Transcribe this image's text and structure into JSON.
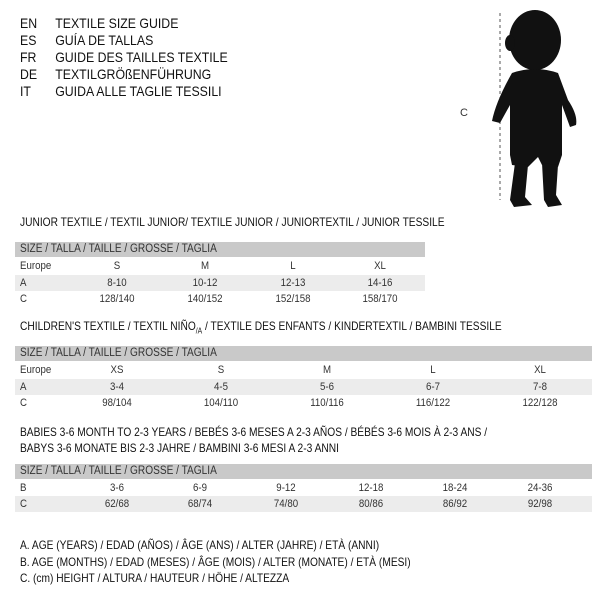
{
  "languages": [
    {
      "code": "EN",
      "text": "TEXTILE SIZE GUIDE"
    },
    {
      "code": "ES",
      "text": "GUÍA DE TALLAS"
    },
    {
      "code": "FR",
      "text": "GUIDE DES TAILLES TEXTILE"
    },
    {
      "code": "DE",
      "text": "TEXTILGRÖßENFÜHRUNG"
    },
    {
      "code": "IT",
      "text": "GUIDA ALLE TAGLIE TESSILI"
    }
  ],
  "figure": {
    "measure_label": "C"
  },
  "size_header": "SIZE / TALLA / TAILLE / GRÖSSE / TAGLIA",
  "junior": {
    "title": "JUNIOR TEXTILE / TEXTIL JUNIOR/ TEXTILE JUNIOR / JUNIORTEXTIL / JUNIOR TESSILE",
    "rows": [
      {
        "label": "Europe",
        "cells": [
          "S",
          "M",
          "L",
          "XL"
        ]
      },
      {
        "label": "A",
        "cells": [
          "8-10",
          "10-12",
          "12-13",
          "14-16"
        ]
      },
      {
        "label": "C",
        "cells": [
          "128/140",
          "140/152",
          "152/158",
          "158/170"
        ]
      }
    ]
  },
  "children": {
    "title_a": "CHILDREN'S TEXTILE / TEXTIL NIÑO",
    "title_sub": "/A",
    "title_b": " / TEXTILE DES ENFANTS / KINDERTEXTIL / BAMBINI TESSILE",
    "rows": [
      {
        "label": "Europe",
        "cells": [
          "XS",
          "S",
          "M",
          "L",
          "XL"
        ]
      },
      {
        "label": "A",
        "cells": [
          "3-4",
          "4-5",
          "5-6",
          "6-7",
          "7-8"
        ]
      },
      {
        "label": "C",
        "cells": [
          "98/104",
          "104/110",
          "110/116",
          "116/122",
          "122/128"
        ]
      }
    ]
  },
  "babies": {
    "title_1": "BABIES 3-6 MONTH TO 2-3 YEARS / BEBÉS 3-6 MESES A 2-3 AÑOS / BÉBÉS 3-6 MOIS À 2-3 ANS /",
    "title_2": "BABYS 3-6 MONATE BIS 2-3 JAHRE / BAMBINI 3-6 MESI A 2-3 ANNI",
    "rows": [
      {
        "label": "B",
        "cells": [
          "3-6",
          "6-9",
          "9-12",
          "12-18",
          "18-24",
          "24-36"
        ]
      },
      {
        "label": "C",
        "cells": [
          "62/68",
          "68/74",
          "74/80",
          "80/86",
          "86/92",
          "92/98"
        ]
      }
    ]
  },
  "legend": [
    "A. AGE (YEARS) / EDAD (AÑOS) / ÂGE (ANS) / ALTER (JAHRE) / ETÀ (ANNI)",
    "B. AGE (MONTHS) / EDAD (MESES) / ÂGE (MOIS) / ALTER (MONATE) / ETÀ (MESI)",
    "C. (cm) HEIGHT / ALTURA / HAUTEUR / HÖHE / ALTEZZA"
  ]
}
